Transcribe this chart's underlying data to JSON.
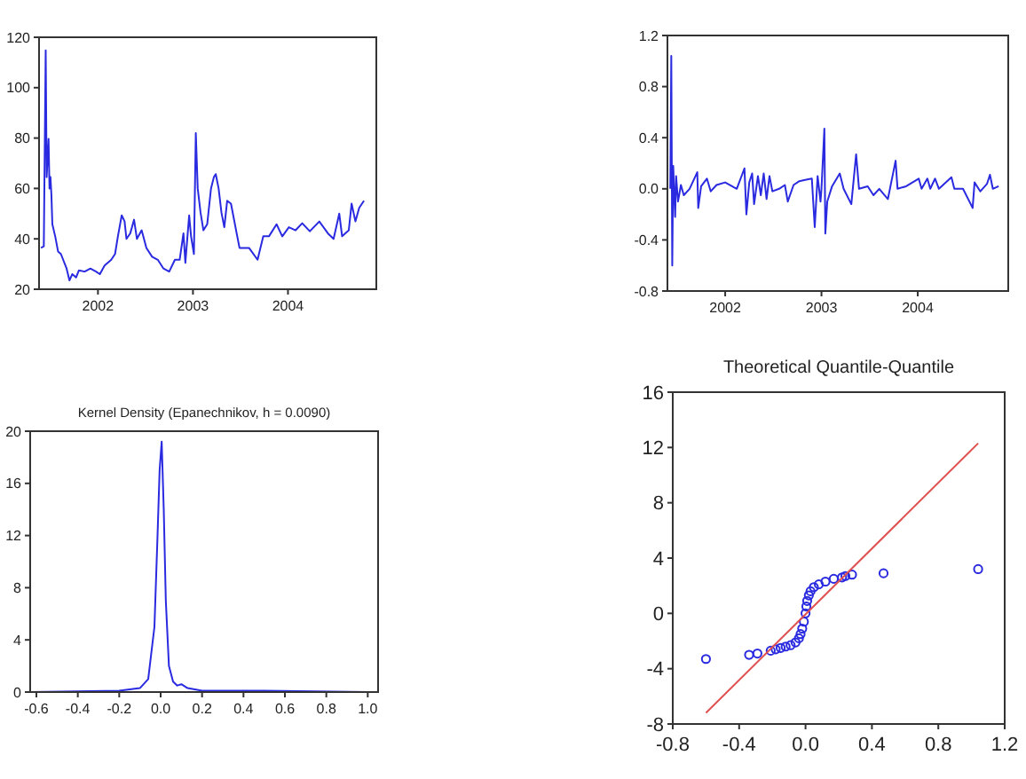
{
  "chart_data": [
    {
      "type": "line",
      "xlim": [
        2001.88,
        2005.43
      ],
      "xticks": [
        {
          "value": 2002.5,
          "label": "2002"
        },
        {
          "value": 2003.5,
          "label": "2003"
        },
        {
          "value": 2004.5,
          "label": "2004"
        }
      ],
      "ylim": [
        20,
        120
      ],
      "yticks": [
        20,
        40,
        60,
        80,
        100,
        120
      ],
      "series": [
        {
          "color": "#2a2ae0",
          "x": [
            2001.9,
            2001.93,
            2001.95,
            2001.96,
            2001.98,
            2001.99,
            2002.0,
            2002.01,
            2002.02,
            2002.05,
            2002.08,
            2002.11,
            2002.17,
            2002.2,
            2002.23,
            2002.27,
            2002.3,
            2002.36,
            2002.42,
            2002.48,
            2002.52,
            2002.57,
            2002.64,
            2002.68,
            2002.71,
            2002.75,
            2002.78,
            2002.8,
            2002.84,
            2002.88,
            2002.91,
            2002.96,
            2003.01,
            2003.07,
            2003.13,
            2003.19,
            2003.25,
            2003.31,
            2003.36,
            2003.4,
            2003.42,
            2003.46,
            2003.48,
            2003.51,
            2003.53,
            2003.55,
            2003.58,
            2003.61,
            2003.65,
            2003.69,
            2003.72,
            2003.74,
            2003.77,
            2003.8,
            2003.83,
            2003.86,
            2003.9,
            2003.96,
            2003.99,
            2004.09,
            2004.18,
            2004.24,
            2004.3,
            2004.38,
            2004.44,
            2004.51,
            2004.58,
            2004.65,
            2004.73,
            2004.83,
            2004.92,
            2004.98,
            2005.04,
            2005.07,
            2005.14,
            2005.17,
            2005.21,
            2005.25,
            2005.3
          ],
          "values": [
            36.4,
            37,
            114.8,
            64.5,
            79.7,
            60,
            64.5,
            57.5,
            45.8,
            41,
            35,
            34,
            28.2,
            23.5,
            26,
            24.7,
            27.5,
            27,
            28.2,
            27,
            26,
            29.4,
            31.7,
            34,
            41,
            49.3,
            47,
            40,
            42.2,
            47.6,
            40,
            43.4,
            36.4,
            32.9,
            31.7,
            28.2,
            27,
            31.7,
            31.7,
            42.2,
            30.5,
            49.3,
            41,
            34,
            82,
            60,
            50.4,
            43.4,
            45.8,
            60,
            64.5,
            65.7,
            60,
            50.4,
            44.6,
            55.1,
            54,
            42.2,
            36.4,
            36.4,
            31.7,
            41,
            41,
            45.8,
            41,
            44.6,
            43.4,
            46.2,
            43,
            46.9,
            42.2,
            40,
            50,
            41,
            43.4,
            54,
            46.9,
            52.3,
            55.1
          ]
        }
      ]
    },
    {
      "type": "line",
      "xlim": [
        2001.9,
        2005.44
      ],
      "xticks": [
        {
          "value": 2002.5,
          "label": "2002"
        },
        {
          "value": 2003.5,
          "label": "2003"
        },
        {
          "value": 2004.5,
          "label": "2004"
        }
      ],
      "ylim": [
        -0.8,
        1.2
      ],
      "yticks": [
        -0.8,
        -0.4,
        {
          "value": 0,
          "label": "0.0"
        },
        0.4,
        0.8,
        1.2
      ],
      "series": [
        {
          "color": "#2a2ae0",
          "x": [
            2001.93,
            2001.94,
            2001.95,
            2001.96,
            2001.98,
            2001.99,
            2002.01,
            2002.04,
            2002.07,
            2002.13,
            2002.21,
            2002.22,
            2002.25,
            2002.31,
            2002.35,
            2002.41,
            2002.5,
            2002.62,
            2002.7,
            2002.72,
            2002.75,
            2002.78,
            2002.8,
            2002.84,
            2002.87,
            2002.9,
            2002.93,
            2002.96,
            2002.99,
            2003.06,
            2003.12,
            2003.15,
            2003.21,
            2003.27,
            2003.33,
            2003.4,
            2003.43,
            2003.46,
            2003.49,
            2003.5,
            2003.53,
            2003.54,
            2003.56,
            2003.61,
            2003.69,
            2003.73,
            2003.81,
            2003.86,
            2003.89,
            2003.98,
            2004.04,
            2004.1,
            2004.19,
            2004.27,
            2004.29,
            2004.38,
            2004.51,
            2004.54,
            2004.6,
            2004.63,
            2004.68,
            2004.72,
            2004.85,
            2004.88,
            2004.97,
            2005.07,
            2005.09,
            2005.15,
            2005.22,
            2005.25,
            2005.28,
            2005.34
          ],
          "values": [
            0,
            1.04,
            -0.6,
            0.18,
            -0.22,
            0.1,
            -0.1,
            0.03,
            -0.05,
            0,
            0.13,
            -0.15,
            0.02,
            0.08,
            -0.02,
            0.03,
            0.05,
            0,
            0.16,
            -0.2,
            0.05,
            0.12,
            -0.12,
            0.1,
            -0.05,
            0.12,
            -0.08,
            0.1,
            -0.02,
            0,
            0.03,
            -0.1,
            0.03,
            0.06,
            0.07,
            0.08,
            -0.3,
            0.1,
            -0.1,
            0,
            0.47,
            -0.35,
            -0.1,
            0.02,
            0.12,
            0,
            -0.12,
            0.27,
            0,
            0.02,
            -0.05,
            0,
            -0.08,
            0.22,
            0,
            0.02,
            0.08,
            0,
            0.08,
            0,
            0.08,
            0,
            0.09,
            0,
            0,
            -0.15,
            0.05,
            -0.02,
            0.04,
            0.11,
            0,
            0.02
          ]
        }
      ]
    },
    {
      "type": "line",
      "title": "Kernel Density (Epanechnikov, h =  0.0090)",
      "xlim": [
        -0.63,
        1.05
      ],
      "xticks": [
        -0.6,
        -0.4,
        -0.2,
        {
          "value": 0,
          "label": "0.0"
        },
        0.2,
        0.4,
        0.6,
        0.8,
        {
          "value": 1,
          "label": "1.0"
        }
      ],
      "ylim": [
        0,
        20
      ],
      "yticks": [
        0,
        4,
        8,
        12,
        16,
        20
      ],
      "series": [
        {
          "color": "#2a2ae0",
          "x": [
            -0.63,
            -0.2,
            -0.1,
            -0.06,
            -0.03,
            -0.015,
            -0.005,
            0.005,
            0.015,
            0.025,
            0.04,
            0.06,
            0.08,
            0.1,
            0.13,
            0.2,
            0.5,
            1.0
          ],
          "values": [
            0,
            0.1,
            0.3,
            1,
            5,
            12,
            17,
            19.2,
            14,
            7,
            2,
            0.8,
            0.5,
            0.6,
            0.3,
            0.1,
            0.1,
            0
          ]
        }
      ]
    },
    {
      "type": "scatter",
      "title": "Theoretical Quantile-Quantile",
      "xlim": [
        -0.8,
        1.2
      ],
      "xticks": [
        -0.8,
        -0.4,
        {
          "value": 0,
          "label": "0.0"
        },
        0.4,
        0.8,
        1.2
      ],
      "ylim": [
        -8,
        16
      ],
      "yticks": [
        -8,
        -4,
        0,
        4,
        8,
        12,
        16
      ],
      "series": [
        {
          "color": "#2a2ae0",
          "marker": "circle",
          "x": [
            -0.6,
            -0.34,
            -0.29,
            -0.21,
            -0.18,
            -0.15,
            -0.12,
            -0.09,
            -0.06,
            -0.04,
            -0.03,
            -0.02,
            -0.01,
            0,
            0.005,
            0.01,
            0.02,
            0.03,
            0.05,
            0.08,
            0.12,
            0.17,
            0.22,
            0.24,
            0.28,
            0.47,
            1.04
          ],
          "values": [
            -3.3,
            -3.0,
            -2.9,
            -2.7,
            -2.6,
            -2.5,
            -2.4,
            -2.3,
            -2.1,
            -1.8,
            -1.5,
            -1.1,
            -0.6,
            0,
            0.5,
            0.9,
            1.3,
            1.6,
            1.9,
            2.1,
            2.3,
            2.5,
            2.6,
            2.7,
            2.8,
            2.9,
            3.2
          ]
        },
        {
          "type": "line",
          "color": "#e05050",
          "x": [
            -0.6,
            1.04
          ],
          "values": [
            -7.2,
            12.3
          ]
        }
      ]
    }
  ]
}
